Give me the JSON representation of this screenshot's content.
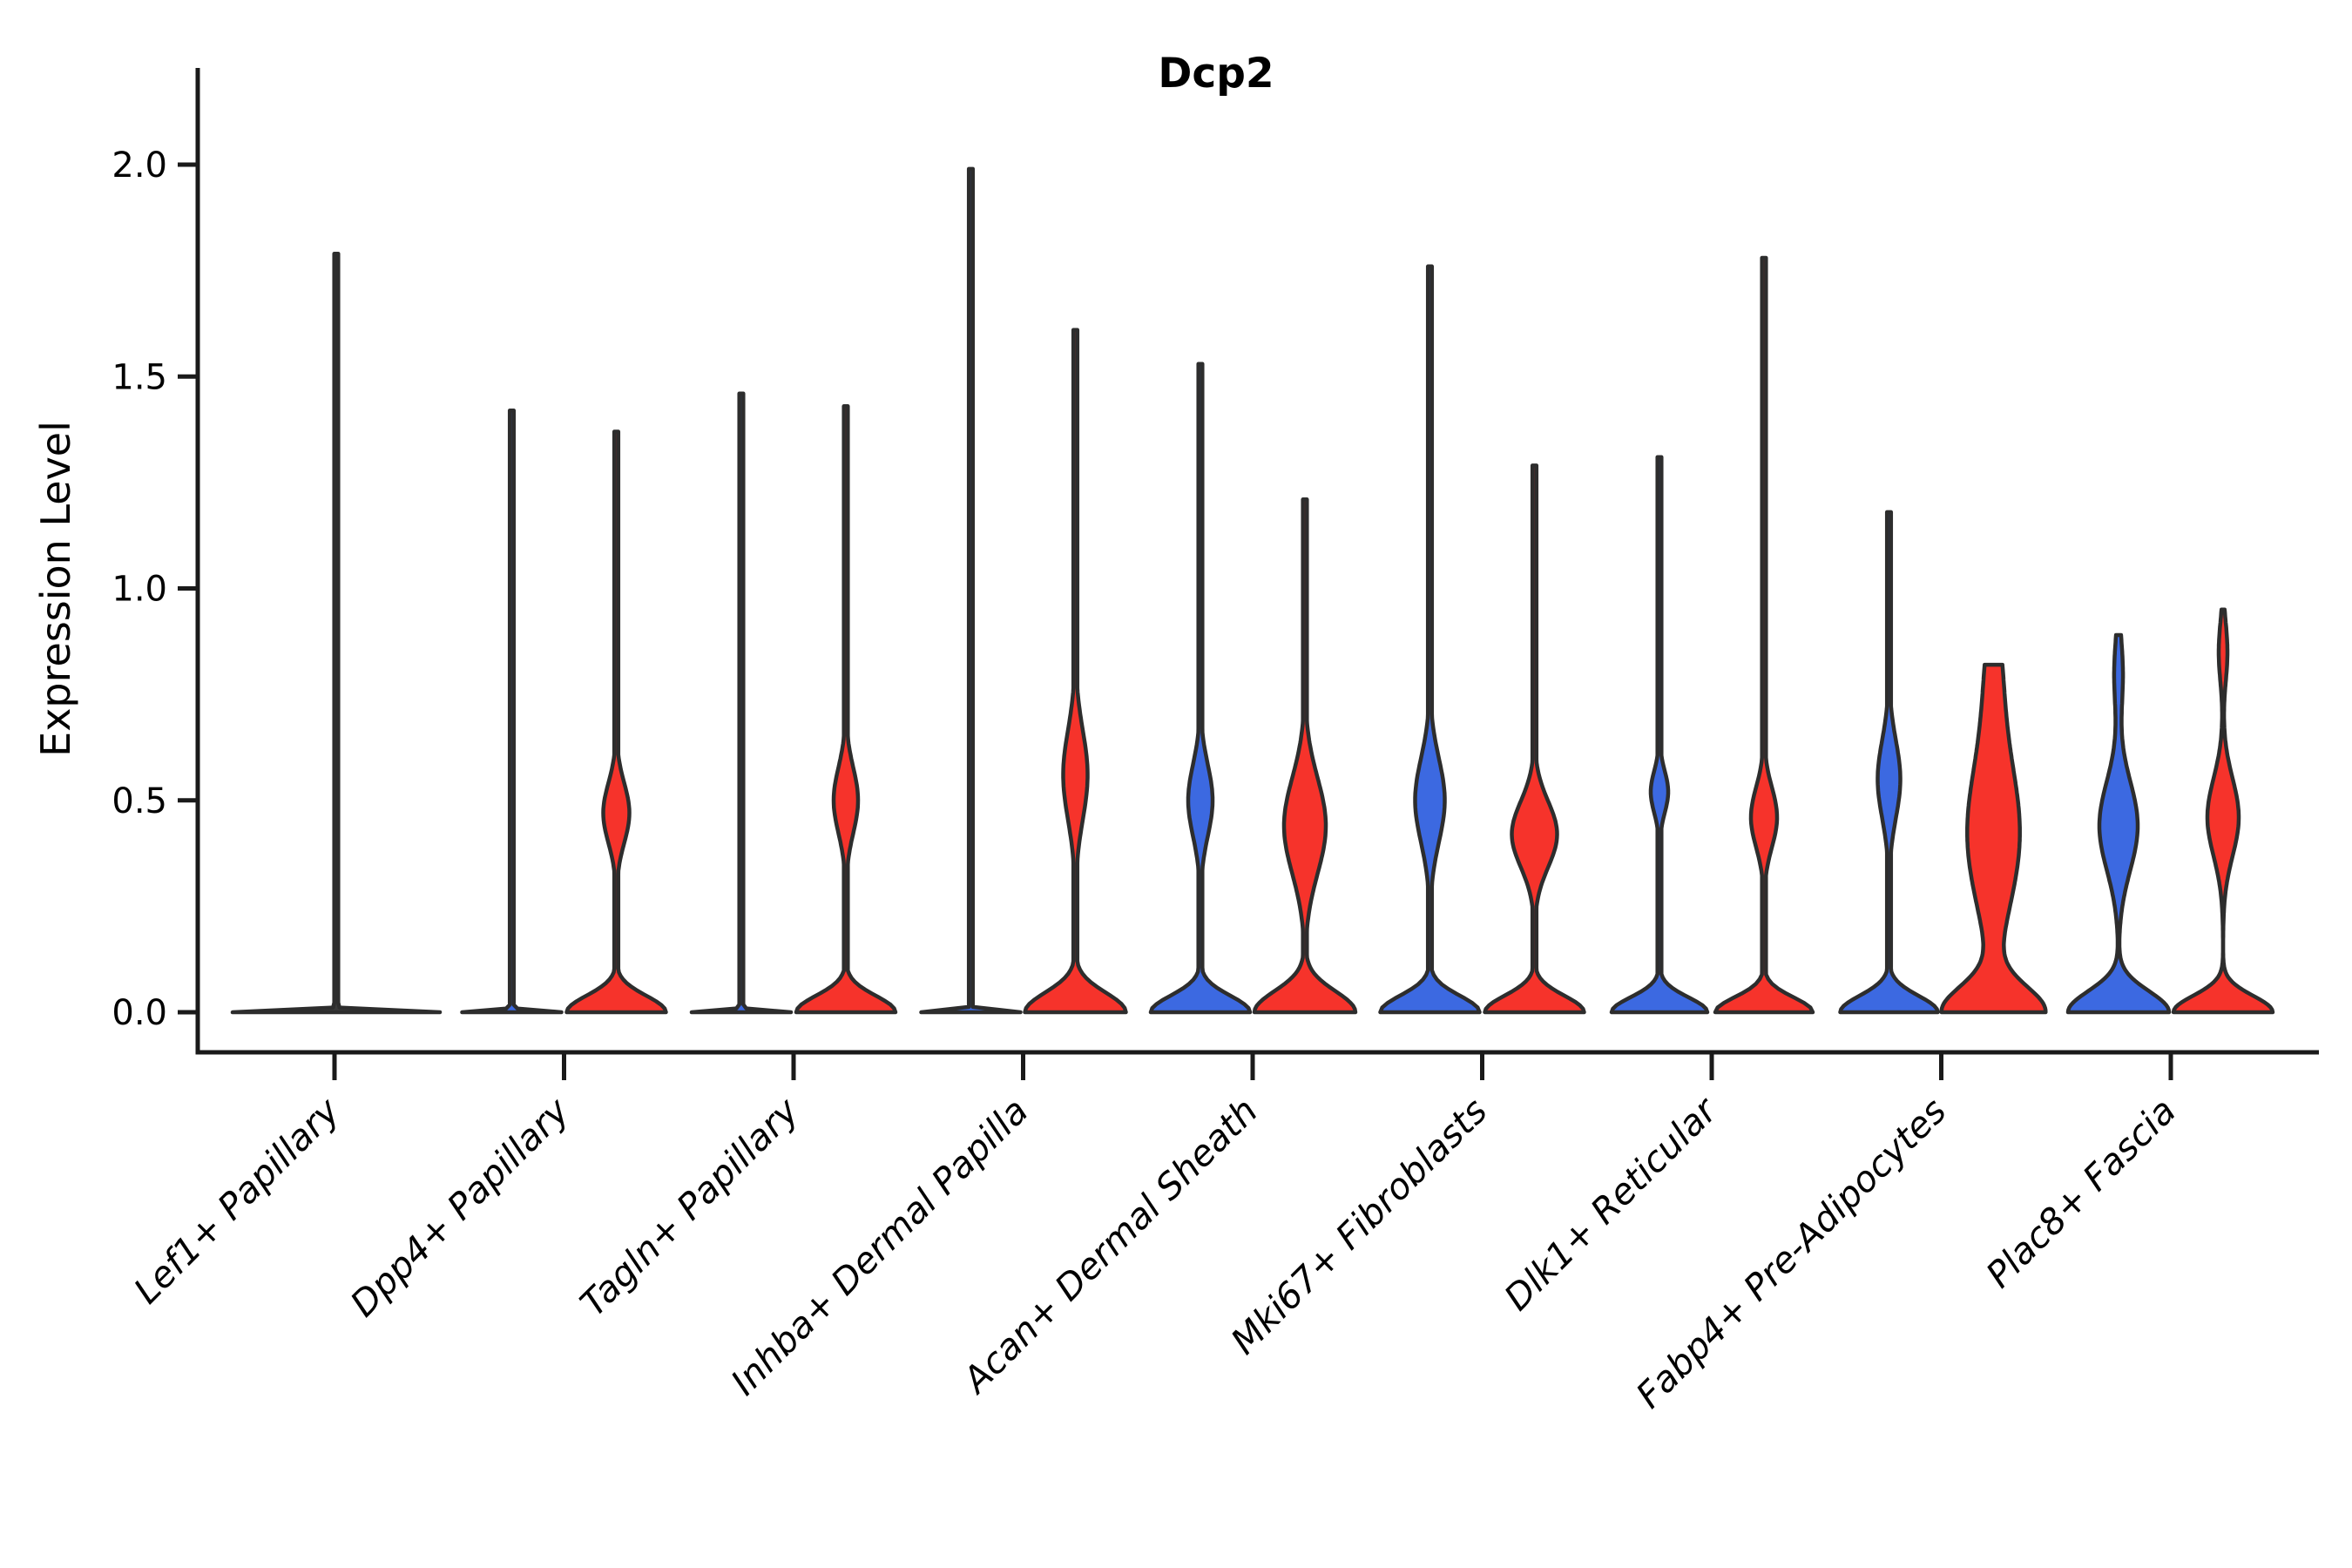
{
  "chart_data": {
    "type": "violin",
    "title": "Dcp2",
    "ylabel": "Expression Level",
    "xlabel": "",
    "ylim": [
      0,
      2.05
    ],
    "yticks": [
      "0.0",
      "0.5",
      "1.0",
      "1.5",
      "2.0"
    ],
    "ytick_values": [
      0,
      0.5,
      1.0,
      1.5,
      2.0
    ],
    "grid": "off",
    "legend": "none",
    "split_colors": {
      "left": "#3c69e1",
      "right": "#f6332b"
    },
    "outline_color": "#2d2d2d",
    "axis_color": "#1a1a1a",
    "categories": [
      "Lef1+ Papillary",
      "Dpp4+ Papillary",
      "Tagln+ Papillary",
      "Inhba+ Dermal Papilla",
      "Acan+ Dermal Sheath",
      "Mki67+ Fibroblasts",
      "Dlk1+ Reticular",
      "Fabp4+ Pre-Adipocytes",
      "Plac8+ Fascia"
    ],
    "groups": [
      {
        "category": "Lef1+ Papillary",
        "violins": [
          {
            "side": "center",
            "color": "#3a3a3a",
            "max": 1.79,
            "body": "flat-at-zero-with-spike",
            "shape": {
              "base": [
                119,
                0.006
              ],
              "bumps": [],
              "spike": true
            }
          }
        ]
      },
      {
        "category": "Dpp4+ Papillary",
        "violins": [
          {
            "side": "left",
            "color": "#3c69e1",
            "max": 1.42,
            "body": "flat-at-zero-with-spike",
            "shape": {
              "base": [
                57,
                0.006
              ],
              "bumps": [],
              "spike": true
            }
          },
          {
            "side": "right",
            "color": "#f6332b",
            "max": 1.37,
            "body": "base-bulge-waist-lens-spike",
            "shape": {
              "base": [
                57,
                0.055
              ],
              "bumps": [
                [
                  15,
                  0.47,
                  0.1
                ]
              ],
              "spike": true
            }
          }
        ]
      },
      {
        "category": "Tagln+ Papillary",
        "violins": [
          {
            "side": "left",
            "color": "#3c69e1",
            "max": 1.46,
            "body": "flat-at-zero-with-spike",
            "shape": {
              "base": [
                57,
                0.006
              ],
              "bumps": [],
              "spike": true
            }
          },
          {
            "side": "right",
            "color": "#f6332b",
            "max": 1.43,
            "body": "base-bulge-waist-lens-spike",
            "shape": {
              "base": [
                57,
                0.055
              ],
              "bumps": [
                [
                  14,
                  0.5,
                  0.11
                ]
              ],
              "spike": true
            }
          }
        ]
      },
      {
        "category": "Inhba+ Dermal Papilla",
        "violins": [
          {
            "side": "left",
            "color": "#3c69e1",
            "max": 1.99,
            "body": "flat-at-zero-with-spike",
            "shape": {
              "base": [
                57,
                0.006
              ],
              "bumps": [],
              "spike": true
            }
          },
          {
            "side": "right",
            "color": "#f6332b",
            "max": 1.61,
            "body": "base-bulge-waist-lens-spike",
            "shape": {
              "base": [
                58,
                0.065
              ],
              "bumps": [
                [
                  14,
                  0.56,
                  0.15
                ]
              ],
              "spike": true
            }
          }
        ]
      },
      {
        "category": "Acan+ Dermal Sheath",
        "violins": [
          {
            "side": "left",
            "color": "#3c69e1",
            "max": 1.53,
            "body": "base-bulge-waist-lens-spike",
            "shape": {
              "base": [
                57,
                0.055
              ],
              "bumps": [
                [
                  14,
                  0.5,
                  0.12
                ]
              ],
              "spike": true
            }
          },
          {
            "side": "right",
            "color": "#f6332b",
            "max": 1.21,
            "body": "broad-body-spike",
            "shape": {
              "base": [
                58,
                0.07
              ],
              "bumps": [
                [
                  24,
                  0.44,
                  0.16
                ]
              ],
              "spike": true
            }
          }
        ]
      },
      {
        "category": "Mki67+ Fibroblasts",
        "violins": [
          {
            "side": "left",
            "color": "#3c69e1",
            "max": 1.76,
            "body": "base-bulge-waist-lens-spike",
            "shape": {
              "base": [
                57,
                0.055
              ],
              "bumps": [
                [
                  17,
                  0.5,
                  0.14
                ]
              ],
              "spike": true
            }
          },
          {
            "side": "right",
            "color": "#f6332b",
            "max": 1.29,
            "body": "base-bulge-waist-lens-spike",
            "shape": {
              "base": [
                57,
                0.055
              ],
              "bumps": [
                [
                  26,
                  0.42,
                  0.11
                ]
              ],
              "spike": true
            }
          }
        ]
      },
      {
        "category": "Dlk1+ Reticular",
        "violins": [
          {
            "side": "left",
            "color": "#3c69e1",
            "max": 1.31,
            "body": "base-bulge-small-lens-spike",
            "shape": {
              "base": [
                55,
                0.05
              ],
              "bumps": [
                [
                  10,
                  0.52,
                  0.07
                ]
              ],
              "spike": true
            }
          },
          {
            "side": "right",
            "color": "#f6332b",
            "max": 1.78,
            "body": "base-bulge-waist-lens-spike",
            "shape": {
              "base": [
                56,
                0.05
              ],
              "bumps": [
                [
                  15,
                  0.46,
                  0.1
                ]
              ],
              "spike": true
            }
          }
        ]
      },
      {
        "category": "Fabp4+ Pre-Adipocytes",
        "violins": [
          {
            "side": "left",
            "color": "#3c69e1",
            "max": 1.18,
            "body": "base-bulge-waist-lens-spike",
            "shape": {
              "base": [
                56,
                0.055
              ],
              "bumps": [
                [
                  13,
                  0.55,
                  0.13
                ]
              ],
              "spike": true
            }
          },
          {
            "side": "right",
            "color": "#f6332b",
            "max": 0.82,
            "body": "broad-column-flat-top",
            "shape": {
              "base": [
                58,
                0.085
              ],
              "bumps": [
                [
                  30,
                  0.42,
                  0.25
                ],
                [
                  8,
                  0.8,
                  0.2
                ]
              ],
              "spike": false
            }
          }
        ]
      },
      {
        "category": "Plac8+ Fascia",
        "violins": [
          {
            "side": "left",
            "color": "#3c69e1",
            "max": 0.89,
            "body": "broad-bulge-blunt-top",
            "shape": {
              "base": [
                58,
                0.07
              ],
              "bumps": [
                [
                  22,
                  0.44,
                  0.15
                ],
                [
                  5,
                  0.8,
                  0.12
                ]
              ],
              "spike": false
            }
          },
          {
            "side": "right",
            "color": "#f6332b",
            "max": 0.95,
            "body": "broad-bulge-blunt-top",
            "shape": {
              "base": [
                57,
                0.055
              ],
              "bumps": [
                [
                  18,
                  0.46,
                  0.13
                ],
                [
                  5,
                  0.85,
                  0.1
                ]
              ],
              "spike": false
            }
          }
        ]
      }
    ]
  }
}
